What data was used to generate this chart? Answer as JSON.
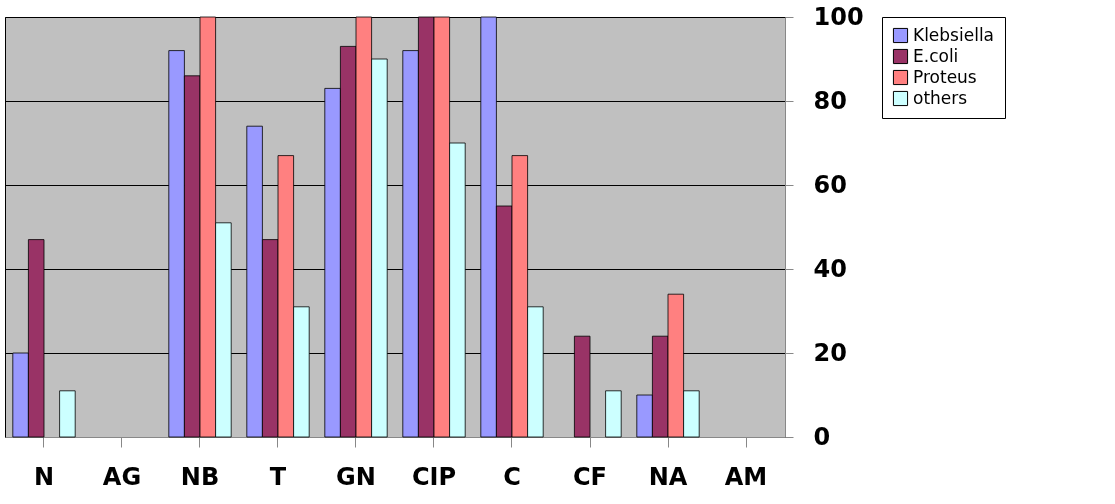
{
  "chart_data": {
    "type": "bar",
    "categories": [
      "N",
      "AG",
      "NB",
      "T",
      "GN",
      "CIP",
      "C",
      "CF",
      "NA",
      "AM"
    ],
    "series": [
      {
        "name": "Klebsiella",
        "color": "#9999ff",
        "values": [
          20,
          0,
          92,
          74,
          83,
          92,
          100,
          0,
          10,
          0
        ]
      },
      {
        "name": "E.coli",
        "color": "#993366",
        "values": [
          47,
          0,
          86,
          47,
          93,
          100,
          55,
          24,
          24,
          0
        ]
      },
      {
        "name": "Proteus",
        "color": "#ff8080",
        "values": [
          0,
          0,
          100,
          67,
          100,
          100,
          67,
          0,
          34,
          0
        ]
      },
      {
        "name": "others",
        "color": "#ccffff",
        "values": [
          11,
          0,
          51,
          31,
          90,
          70,
          31,
          11,
          11,
          0
        ]
      }
    ],
    "ylim": [
      0,
      100
    ],
    "yticks": [
      0,
      20,
      40,
      60,
      80,
      100
    ],
    "grid": "y",
    "legend": "right"
  }
}
